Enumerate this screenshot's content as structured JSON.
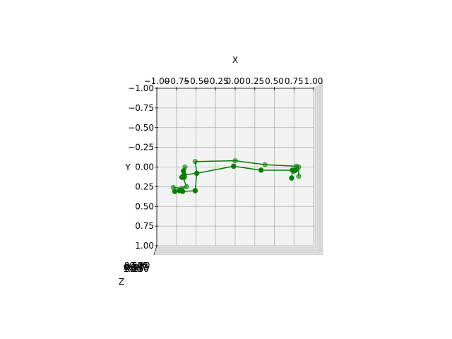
{
  "chart_data": {
    "type": "scatter",
    "projection": "3d",
    "view": "top-down (x horizontal, y vertical inverted)",
    "xlabel": "X",
    "ylabel": "Y",
    "zlabel": "Z",
    "xlim": [
      -1.0,
      1.0
    ],
    "ylim": [
      -1.0,
      1.0
    ],
    "grid": true,
    "x_ticks": [
      "−1.00",
      "−0.75",
      "−0.50",
      "−0.25",
      "0.00",
      "0.25",
      "0.50",
      "0.75",
      "1.00"
    ],
    "y_ticks": [
      "−1.00",
      "−0.75",
      "−0.50",
      "−0.25",
      "0.00",
      "0.25",
      "0.50",
      "0.75",
      "1.00"
    ],
    "z_ticks": [
      "−1.00",
      "−0.75",
      "−0.50",
      "−0.25",
      "0.00",
      "0.25",
      "0.50",
      "0.75",
      "1.00"
    ],
    "colors": {
      "series": "#008000",
      "pane": "#f2f2f2",
      "grid": "#b0b0b0"
    },
    "points": [
      {
        "x": -0.51,
        "y": -0.07,
        "back": true
      },
      {
        "x": 0.0,
        "y": -0.08,
        "back": true
      },
      {
        "x": 0.38,
        "y": -0.03,
        "back": true
      },
      {
        "x": 0.78,
        "y": -0.01,
        "back": true
      },
      {
        "x": 0.81,
        "y": 0.0,
        "back": true
      },
      {
        "x": 0.81,
        "y": 0.12,
        "back": true
      },
      {
        "x": -0.64,
        "y": 0.0,
        "back": true
      },
      {
        "x": -0.67,
        "y": 0.12,
        "back": true
      },
      {
        "x": -0.62,
        "y": 0.25,
        "back": true
      },
      {
        "x": -0.68,
        "y": 0.27,
        "back": true
      },
      {
        "x": -0.79,
        "y": 0.26,
        "back": true
      },
      {
        "x": -0.49,
        "y": 0.08
      },
      {
        "x": -0.02,
        "y": -0.01
      },
      {
        "x": 0.33,
        "y": 0.04
      },
      {
        "x": 0.73,
        "y": 0.04
      },
      {
        "x": 0.75,
        "y": 0.05
      },
      {
        "x": 0.77,
        "y": 0.04
      },
      {
        "x": 0.72,
        "y": 0.14
      },
      {
        "x": -0.51,
        "y": 0.3
      },
      {
        "x": -0.67,
        "y": 0.31
      },
      {
        "x": -0.71,
        "y": 0.3
      },
      {
        "x": -0.77,
        "y": 0.31
      },
      {
        "x": -0.65,
        "y": 0.1
      },
      {
        "x": -0.65,
        "y": 0.13
      },
      {
        "x": -0.66,
        "y": 0.05
      },
      {
        "x": -0.68,
        "y": 0.13
      }
    ],
    "segments": [
      [
        0,
        1
      ],
      [
        1,
        2
      ],
      [
        2,
        3
      ],
      [
        3,
        4
      ],
      [
        4,
        5
      ],
      [
        0,
        11
      ],
      [
        11,
        12
      ],
      [
        12,
        13
      ],
      [
        13,
        14
      ],
      [
        14,
        15
      ],
      [
        15,
        16
      ],
      [
        14,
        17
      ],
      [
        11,
        18
      ],
      [
        18,
        19
      ],
      [
        19,
        20
      ],
      [
        20,
        21
      ],
      [
        11,
        22
      ],
      [
        22,
        23
      ],
      [
        23,
        24
      ],
      [
        24,
        6
      ],
      [
        6,
        7
      ],
      [
        7,
        8
      ],
      [
        8,
        9
      ],
      [
        9,
        10
      ]
    ]
  }
}
